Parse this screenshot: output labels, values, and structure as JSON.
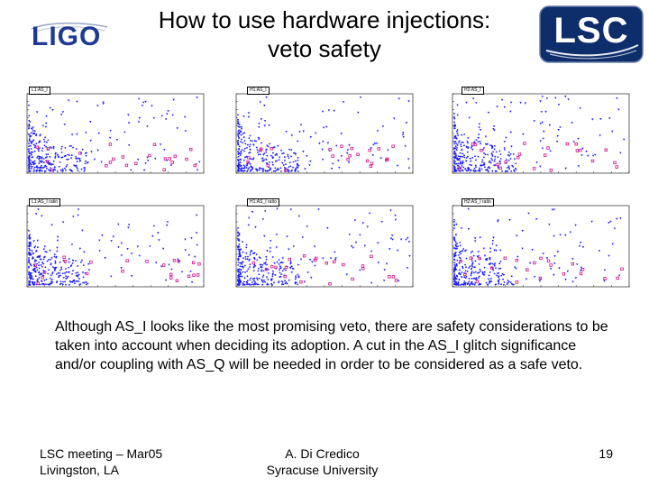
{
  "header": {
    "title_line1": "How to use hardware injections:",
    "title_line2": "veto safety",
    "ligo_logo_text": "LIGO",
    "lsc_logo_text": "LSC"
  },
  "plots": [
    {
      "label": "L1:AS_I"
    },
    {
      "label": "H1:AS_I"
    },
    {
      "label": "H2:AS_I"
    },
    {
      "label": "L1:AS_I ratio"
    },
    {
      "label": "H1:AS_I ratio"
    },
    {
      "label": "H2:AS_I ratio"
    }
  ],
  "body": {
    "paragraph": "Although AS_I looks like the most promising veto, there are safety considerations to be taken into account when deciding its adoption. A cut in the AS_I glitch significance and/or coupling with AS_Q will be needed in order to be considered as a safe veto."
  },
  "footer": {
    "left_line1": "LSC meeting – Mar05",
    "left_line2": "Livingston, LA",
    "center_line1": "A. Di Credico",
    "center_line2": "Syracuse University",
    "page_number": "19"
  },
  "colors": {
    "ligo_blue": "#1f3a93",
    "lsc_navy": "#0d2d6b",
    "scatter_blue": "#1a1aff",
    "scatter_magenta": "#d0108a"
  }
}
